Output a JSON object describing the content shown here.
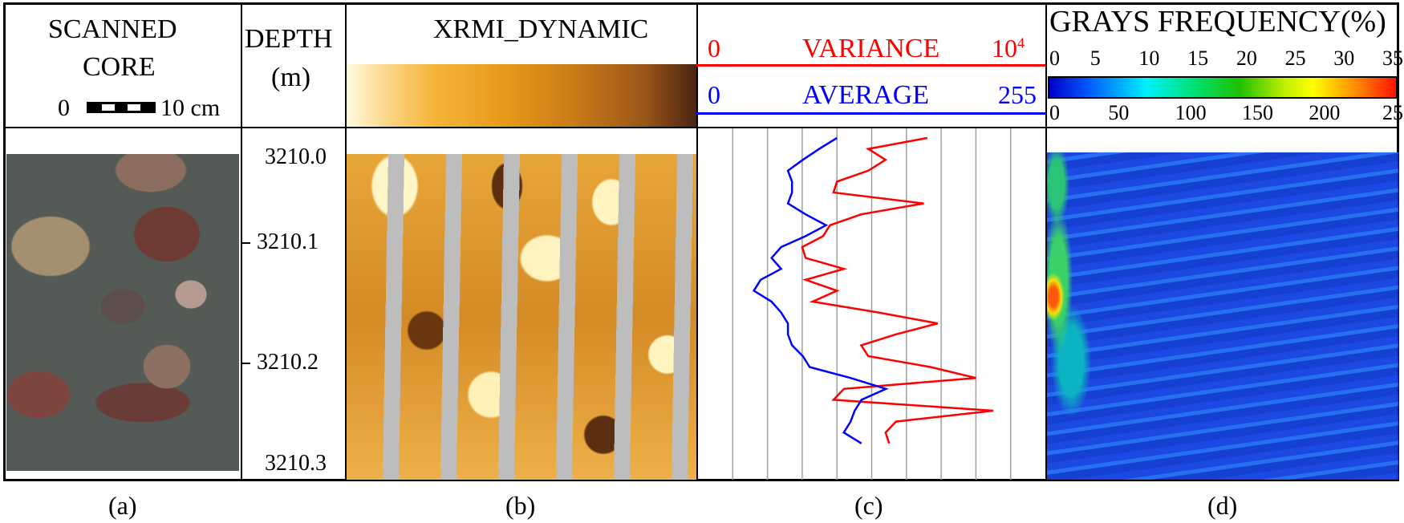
{
  "panels": {
    "a": {
      "title_line1": "SCANNED",
      "title_line2": "CORE",
      "scale_min": "0",
      "scale_max": "10 cm",
      "caption": "(a)"
    },
    "depth": {
      "title_line1": "DEPTH",
      "title_line2": "(m)",
      "ticks": [
        "3210.0",
        "3210.1",
        "3210.2",
        "3210.3"
      ]
    },
    "b": {
      "title": "XRMI_DYNAMIC",
      "caption": "(b)"
    },
    "c": {
      "variance_min": "0",
      "variance_label": "VARIANCE",
      "variance_max": "10",
      "variance_max_exp": "4",
      "average_min": "0",
      "average_label": "AVERAGE",
      "average_max": "255",
      "caption": "(c)"
    },
    "d": {
      "title": "GRAYS FREQUENCY(%)",
      "freq_ticks": [
        "0",
        "5",
        "10",
        "15",
        "20",
        "25",
        "30",
        "35"
      ],
      "gray_ticks": [
        "0",
        "50",
        "100",
        "150",
        "200",
        "255"
      ],
      "caption": "(d)"
    }
  },
  "colors": {
    "variance": "#ff0000",
    "average": "#0000ff",
    "grid": "#a0a0a0"
  },
  "chart_data": {
    "type": "line",
    "ylabel": "DEPTH (m)",
    "ylim": [
      3210.0,
      3210.3
    ],
    "series": [
      {
        "name": "VARIANCE",
        "xlim": [
          0,
          10000
        ],
        "depth": [
          3210.0,
          3210.01,
          3210.02,
          3210.03,
          3210.04,
          3210.05,
          3210.06,
          3210.07,
          3210.08,
          3210.09,
          3210.1,
          3210.11,
          3210.12,
          3210.13,
          3210.14,
          3210.15,
          3210.16,
          3210.17,
          3210.18,
          3210.19,
          3210.2,
          3210.21,
          3210.22,
          3210.23,
          3210.24,
          3210.25,
          3210.26,
          3210.27,
          3210.28
        ],
        "values": [
          6600,
          4900,
          5400,
          4900,
          4000,
          3900,
          6500,
          4700,
          3800,
          3600,
          3000,
          3100,
          4200,
          3100,
          4000,
          3300,
          5200,
          6900,
          5700,
          4700,
          4900,
          6700,
          8000,
          4200,
          3900,
          8500,
          5700,
          5400,
          5500
        ]
      },
      {
        "name": "AVERAGE",
        "xlim": [
          0,
          255
        ],
        "depth": [
          3210.0,
          3210.01,
          3210.02,
          3210.03,
          3210.04,
          3210.05,
          3210.06,
          3210.07,
          3210.08,
          3210.09,
          3210.1,
          3210.11,
          3210.12,
          3210.13,
          3210.14,
          3210.15,
          3210.16,
          3210.17,
          3210.18,
          3210.19,
          3210.2,
          3210.21,
          3210.22,
          3210.23,
          3210.24,
          3210.25,
          3210.26,
          3210.27,
          3210.28
        ],
        "values": [
          102,
          89,
          77,
          66,
          69,
          69,
          66,
          79,
          94,
          79,
          61,
          54,
          61,
          46,
          41,
          54,
          61,
          66,
          66,
          69,
          77,
          82,
          112,
          138,
          120,
          115,
          112,
          107,
          120
        ]
      }
    ]
  }
}
